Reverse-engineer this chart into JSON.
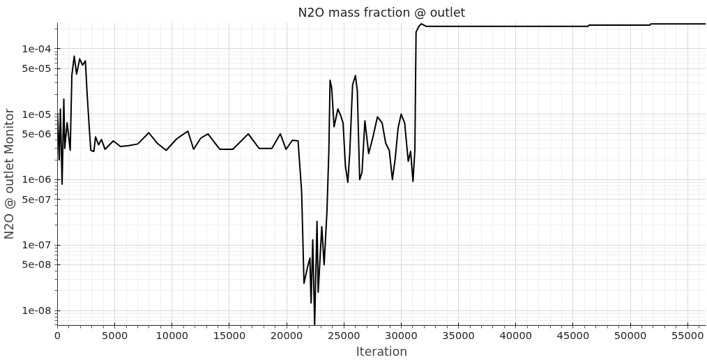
{
  "chart_data": {
    "type": "line",
    "title": "N2O mass fraction @ outlet",
    "xlabel": "Iteration",
    "ylabel": "N2O @ outlet Monitor",
    "log": "y",
    "grid": true,
    "marker": "none",
    "line_style": "solid",
    "xlim": [
      0,
      56600
    ],
    "ylim": [
      5.9e-09,
      0.00025
    ],
    "xticks": [
      0,
      5000,
      10000,
      15000,
      20000,
      25000,
      30000,
      35000,
      40000,
      45000,
      50000,
      55000
    ],
    "yticks": [
      {
        "value": 1e-08,
        "label": "1e-08"
      },
      {
        "value": 5e-08,
        "label": "5e-08"
      },
      {
        "value": 1e-07,
        "label": "1e-07"
      },
      {
        "value": 5e-07,
        "label": "5e-07"
      },
      {
        "value": 1e-06,
        "label": "1e-06"
      },
      {
        "value": 5e-06,
        "label": "5e-06"
      },
      {
        "value": 1e-05,
        "label": "1e-05"
      },
      {
        "value": 5e-05,
        "label": "5e-05"
      },
      {
        "value": 0.0001,
        "label": "1e-04"
      }
    ],
    "series": [
      {
        "color": "#000000",
        "x": [
          0,
          150,
          250,
          400,
          550,
          630,
          837,
          1107,
          1251,
          1458,
          1664,
          1933,
          2181,
          2430,
          2595,
          2802,
          2905,
          3175,
          3318,
          3587,
          3836,
          4147,
          4869,
          5500,
          6200,
          7000,
          7970,
          8700,
          9483,
          10400,
          11380,
          11880,
          12500,
          13130,
          14170,
          15300,
          16650,
          17590,
          18710,
          19450,
          19950,
          20500,
          20997,
          21307,
          21514,
          21824,
          22031,
          22134,
          22279,
          22444,
          22651,
          22754,
          23064,
          23271,
          23520,
          23685,
          23789,
          23933,
          24140,
          24471,
          24719,
          24926,
          25133,
          25340,
          25506,
          25754,
          26002,
          26167,
          26374,
          26581,
          26829,
          27160,
          27510,
          27926,
          28336,
          28646,
          28956,
          29230,
          29478,
          29726,
          29993,
          30303,
          30613,
          30820,
          31027,
          31192,
          31296,
          31544,
          31751,
          32163,
          40000,
          46300,
          46400,
          51700,
          51800,
          56600
        ],
        "values": [
          1e-05,
          2e-06,
          1.2e-05,
          8.5e-07,
          1.7e-05,
          3e-06,
          7.4e-06,
          2.8e-06,
          3.9e-05,
          7.7e-05,
          4.1e-05,
          7e-05,
          5.6e-05,
          6.5e-05,
          1.9e-05,
          5.1e-06,
          2.8e-06,
          2.7e-06,
          4.5e-06,
          3.4e-06,
          4.1e-06,
          2.9e-06,
          3.9e-06,
          3.2e-06,
          3.3e-06,
          3.5e-06,
          5.2e-06,
          3.6e-06,
          2.8e-06,
          4.2e-06,
          5.5e-06,
          2.9e-06,
          4.3e-06,
          5e-06,
          2.9e-06,
          2.9e-06,
          5e-06,
          3e-06,
          3e-06,
          5e-06,
          2.9e-06,
          4e-06,
          3.9e-06,
          6.6e-07,
          2.6e-08,
          4.6e-08,
          6.3e-08,
          1.3e-08,
          1.2e-07,
          6e-09,
          2.3e-07,
          1.9e-08,
          1.9e-07,
          5e-08,
          3.3e-07,
          2.8e-06,
          3.3e-05,
          2.5e-05,
          6.4e-06,
          1.2e-05,
          9.5e-06,
          7.3e-06,
          1.6e-06,
          9.1e-07,
          2.5e-06,
          2.8e-05,
          3.9e-05,
          2.3e-05,
          1e-06,
          1.3e-06,
          7.9e-06,
          2.5e-06,
          4.3e-06,
          9.1e-06,
          7.3e-06,
          3.6e-06,
          2.8e-06,
          1e-06,
          2.1e-06,
          6.1e-06,
          1e-05,
          7.3e-06,
          1.9e-06,
          2.7e-06,
          9.4e-07,
          2.8e-06,
          0.00018,
          0.00022,
          0.00024,
          0.00022,
          0.00022,
          0.00022,
          0.00023,
          0.00023,
          0.00024,
          0.00024
        ]
      }
    ]
  }
}
